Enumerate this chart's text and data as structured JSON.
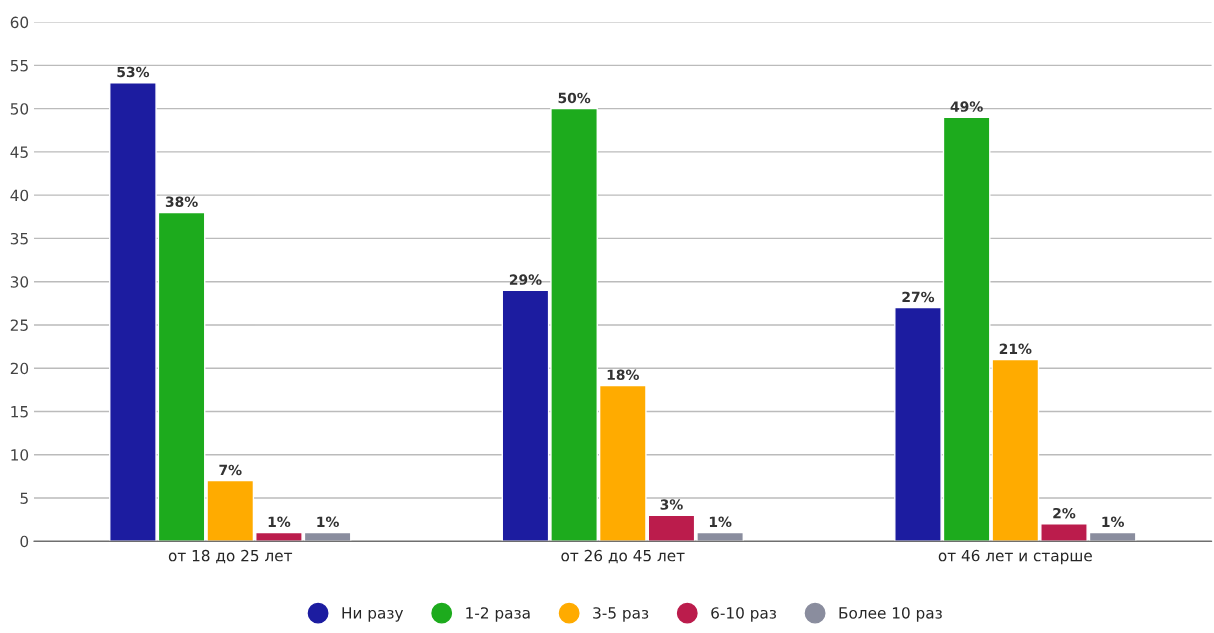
{
  "chart_data": {
    "type": "bar",
    "categories": [
      "от 18 до 25 лет",
      "от 26 до 45 лет",
      "от 46 лет и старше"
    ],
    "series": [
      {
        "name": "Ни разу",
        "color": "#1c1ca0",
        "values": [
          53,
          29,
          27
        ],
        "value_labels": [
          "53%",
          "29%",
          "27%"
        ]
      },
      {
        "name": "1-2 раза",
        "color": "#1dab1d",
        "values": [
          38,
          50,
          49
        ],
        "value_labels": [
          "38%",
          "50%",
          "49%"
        ]
      },
      {
        "name": "3-5 раз",
        "color": "#ffab00",
        "values": [
          7,
          18,
          21
        ],
        "value_labels": [
          "7%",
          "18%",
          "21%"
        ]
      },
      {
        "name": "6-10 раз",
        "color": "#bb1c4c",
        "values": [
          1,
          3,
          2
        ],
        "value_labels": [
          "1%",
          "3%",
          "2%"
        ]
      },
      {
        "name": "Более 10 раз",
        "color": "#8a8d9e",
        "values": [
          1,
          1,
          1
        ],
        "value_labels": [
          "1%",
          "1%",
          "1%"
        ]
      }
    ],
    "ylim": [
      0,
      60
    ],
    "yticks": [
      0,
      5,
      10,
      15,
      20,
      25,
      30,
      35,
      40,
      45,
      50,
      55,
      60
    ],
    "grid": "y",
    "legend": "bottom",
    "marker": "circle"
  }
}
